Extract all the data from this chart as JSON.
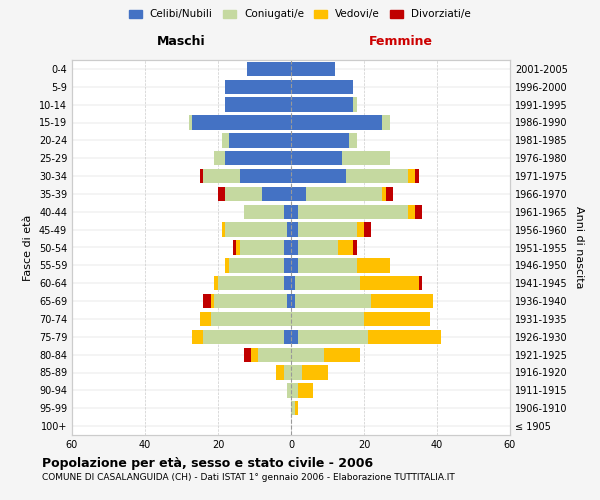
{
  "age_groups": [
    "100+",
    "95-99",
    "90-94",
    "85-89",
    "80-84",
    "75-79",
    "70-74",
    "65-69",
    "60-64",
    "55-59",
    "50-54",
    "45-49",
    "40-44",
    "35-39",
    "30-34",
    "25-29",
    "20-24",
    "15-19",
    "10-14",
    "5-9",
    "0-4"
  ],
  "birth_years": [
    "≤ 1905",
    "1906-1910",
    "1911-1915",
    "1916-1920",
    "1921-1925",
    "1926-1930",
    "1931-1935",
    "1936-1940",
    "1941-1945",
    "1946-1950",
    "1951-1955",
    "1956-1960",
    "1961-1965",
    "1966-1970",
    "1971-1975",
    "1976-1980",
    "1981-1985",
    "1986-1990",
    "1991-1995",
    "1996-2000",
    "2001-2005"
  ],
  "maschi": {
    "celibi": [
      0,
      0,
      0,
      0,
      0,
      2,
      0,
      1,
      2,
      2,
      2,
      1,
      2,
      8,
      14,
      18,
      17,
      27,
      18,
      18,
      12
    ],
    "coniugati": [
      0,
      0,
      1,
      2,
      9,
      22,
      22,
      20,
      18,
      15,
      12,
      17,
      11,
      10,
      10,
      3,
      2,
      1,
      0,
      0,
      0
    ],
    "vedovi": [
      0,
      0,
      0,
      2,
      2,
      3,
      3,
      1,
      1,
      1,
      1,
      1,
      0,
      0,
      0,
      0,
      0,
      0,
      0,
      0,
      0
    ],
    "divorziati": [
      0,
      0,
      0,
      0,
      2,
      0,
      0,
      2,
      0,
      0,
      1,
      0,
      0,
      2,
      1,
      0,
      0,
      0,
      0,
      0,
      0
    ]
  },
  "femmine": {
    "nubili": [
      0,
      0,
      0,
      0,
      0,
      2,
      0,
      1,
      1,
      2,
      2,
      2,
      2,
      4,
      15,
      14,
      16,
      25,
      17,
      17,
      12
    ],
    "coniugate": [
      0,
      1,
      2,
      3,
      9,
      19,
      20,
      21,
      18,
      16,
      11,
      16,
      30,
      21,
      17,
      13,
      2,
      2,
      1,
      0,
      0
    ],
    "vedove": [
      0,
      1,
      4,
      7,
      10,
      20,
      18,
      17,
      16,
      9,
      4,
      2,
      2,
      1,
      2,
      0,
      0,
      0,
      0,
      0,
      0
    ],
    "divorziate": [
      0,
      0,
      0,
      0,
      0,
      0,
      0,
      0,
      1,
      0,
      1,
      2,
      2,
      2,
      1,
      0,
      0,
      0,
      0,
      0,
      0
    ]
  },
  "colors": {
    "celibi": "#4472c4",
    "coniugati": "#c5d9a0",
    "vedovi": "#ffc000",
    "divorziati": "#c00000"
  },
  "xlim": 60,
  "title": "Popolazione per età, sesso e stato civile - 2006",
  "subtitle": "COMUNE DI CASALANGUIDA (CH) - Dati ISTAT 1° gennaio 2006 - Elaborazione TUTTITALIA.IT",
  "ylabel_left": "Fasce di età",
  "ylabel_right": "Anni di nascita",
  "xlabel_left": "Maschi",
  "xlabel_right": "Femmine",
  "legend_labels": [
    "Celibi/Nubili",
    "Coniugati/e",
    "Vedovi/e",
    "Divorziati/e"
  ],
  "bg_color": "#f5f5f5",
  "plot_bg_color": "#ffffff"
}
